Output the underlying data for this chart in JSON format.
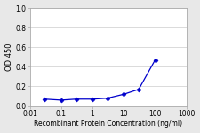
{
  "x": [
    0.03,
    0.1,
    0.3,
    1,
    3,
    10,
    30,
    100
  ],
  "y": [
    0.07,
    0.06,
    0.07,
    0.07,
    0.08,
    0.12,
    0.17,
    0.47
  ],
  "color": "#0000CC",
  "marker": "D",
  "marker_size": 2.5,
  "linewidth": 0.9,
  "ylabel": "OD 450",
  "xlabel": "Recombinant Protein Concentration (ng/ml)",
  "ylim": [
    0.0,
    1.0
  ],
  "yticks": [
    0.0,
    0.2,
    0.4,
    0.6,
    0.8,
    1.0
  ],
  "xlim_log": [
    0.01,
    1000
  ],
  "xtick_labels": [
    "0.01",
    "0.1",
    "1",
    "10",
    "100",
    "1000"
  ],
  "xtick_values": [
    0.01,
    0.1,
    1,
    10,
    100,
    1000
  ],
  "figure_bg_color": "#e8e8e8",
  "plot_bg_color": "#ffffff",
  "grid_color": "#cccccc",
  "axis_fontsize": 5.5,
  "tick_fontsize": 5.5,
  "ylabel_fontsize": 6.0
}
